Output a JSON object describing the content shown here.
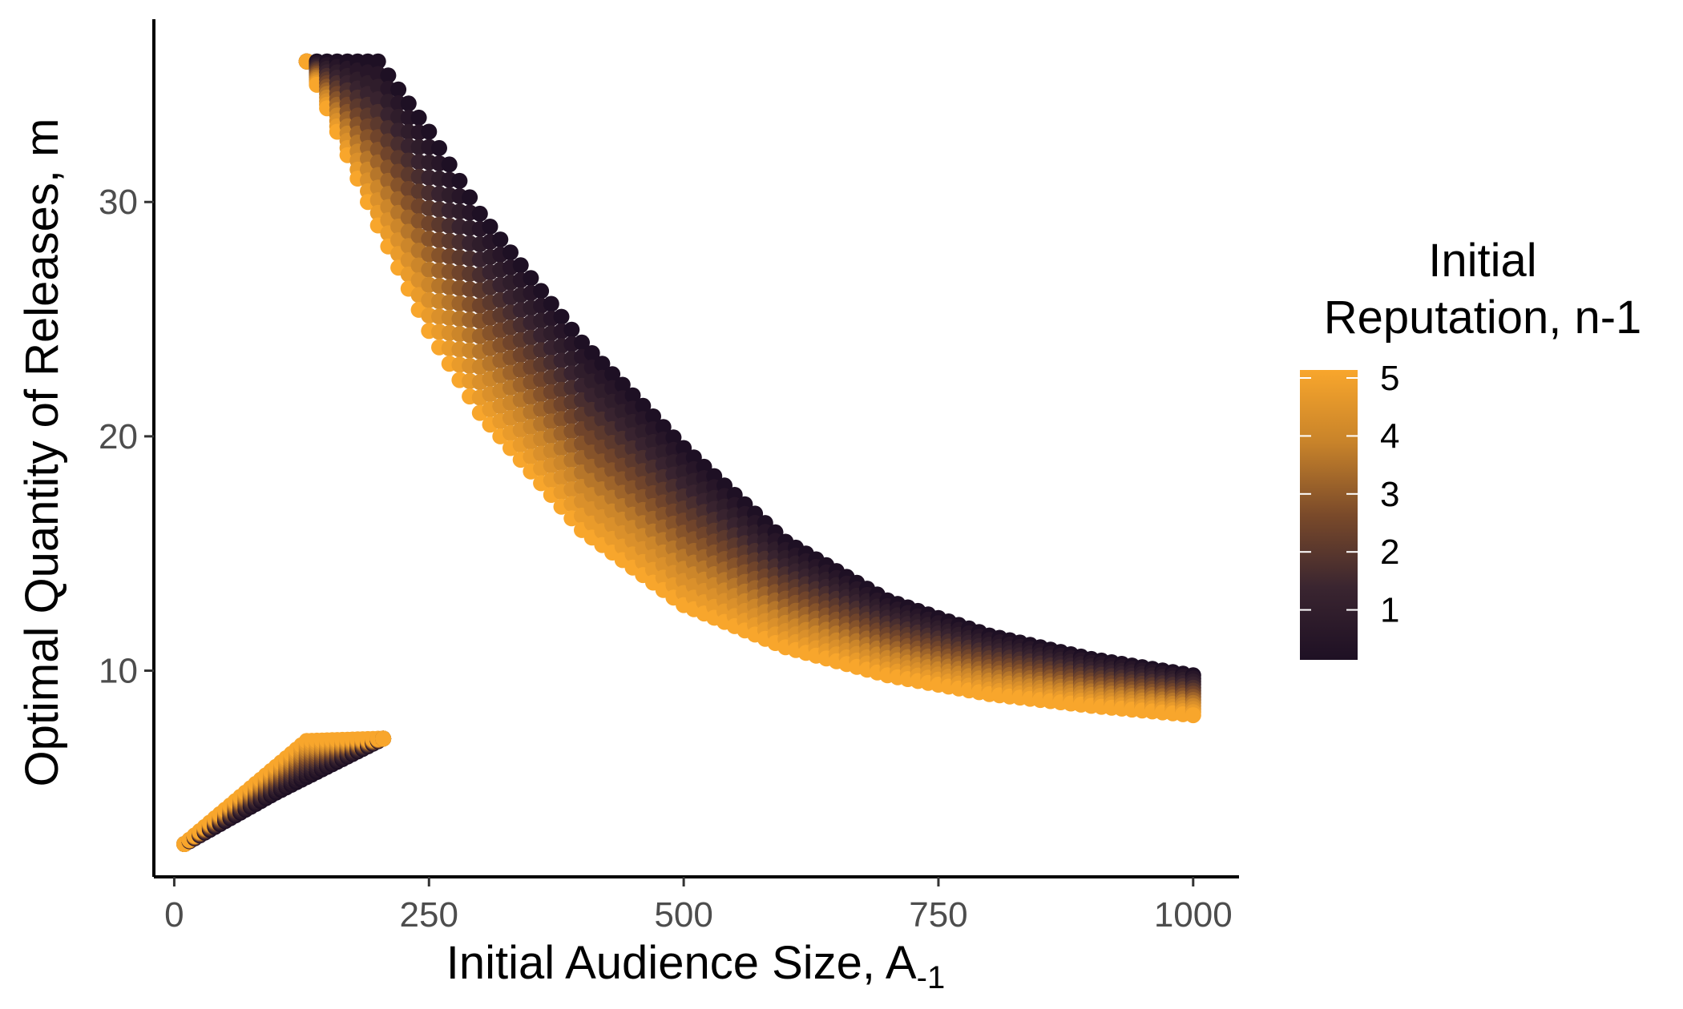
{
  "chart_data": {
    "type": "scatter",
    "xlabel": "Initial Audience Size, A",
    "xlabel_subscript": "-1",
    "ylabel": "Optimal Quantity of Releases, m",
    "xlim": [
      -20,
      1045
    ],
    "ylim": [
      1.2,
      37.8
    ],
    "x_ticks": [
      0,
      250,
      500,
      750,
      1000
    ],
    "x_tick_labels": [
      "0",
      "250",
      "500",
      "750",
      "1000"
    ],
    "y_ticks": [
      10,
      20,
      30
    ],
    "y_tick_labels": [
      "10",
      "20",
      "30"
    ],
    "grid": false,
    "legend": {
      "placement": "right",
      "title_lines": [
        "Initial",
        "Reputation, n-1"
      ],
      "ticks": [
        1,
        2,
        3,
        4,
        5
      ],
      "tick_labels": [
        "1",
        "2",
        "3",
        "4",
        "5"
      ],
      "range": [
        0,
        5
      ],
      "colors": {
        "low": "#1e1024",
        "mid_low": "#3a2530",
        "mid": "#7a4a2a",
        "mid_high": "#c8832a",
        "high": "#f8a62c"
      }
    },
    "series": [
      {
        "description_key": "upper-region",
        "x_range": [
          130,
          1000
        ],
        "x_step": 10,
        "low_reputation_edge": {
          "x": [
            130,
            200,
            250,
            300,
            400,
            500,
            600,
            700,
            800,
            900,
            1000
          ],
          "y": [
            36,
            36,
            33,
            29.5,
            24,
            19.5,
            15.5,
            13,
            11.5,
            10.5,
            9.8
          ]
        },
        "high_reputation_edge": {
          "x": [
            130,
            150,
            200,
            250,
            300,
            400,
            500,
            600,
            700,
            800,
            900,
            1000
          ],
          "y": [
            36,
            34,
            29,
            24.5,
            21,
            16,
            12.8,
            11,
            9.8,
            9,
            8.5,
            8.1
          ]
        }
      },
      {
        "description_key": "lower-region",
        "x_range": [
          10,
          205
        ],
        "x_step": 5,
        "low_reputation_edge": {
          "x": [
            10,
            100,
            205
          ],
          "y": [
            2.6,
            4.8,
            7.1
          ]
        },
        "high_reputation_edge": {
          "x": [
            10,
            130,
            205
          ],
          "y": [
            2.6,
            7.0,
            7.1
          ]
        }
      }
    ]
  }
}
